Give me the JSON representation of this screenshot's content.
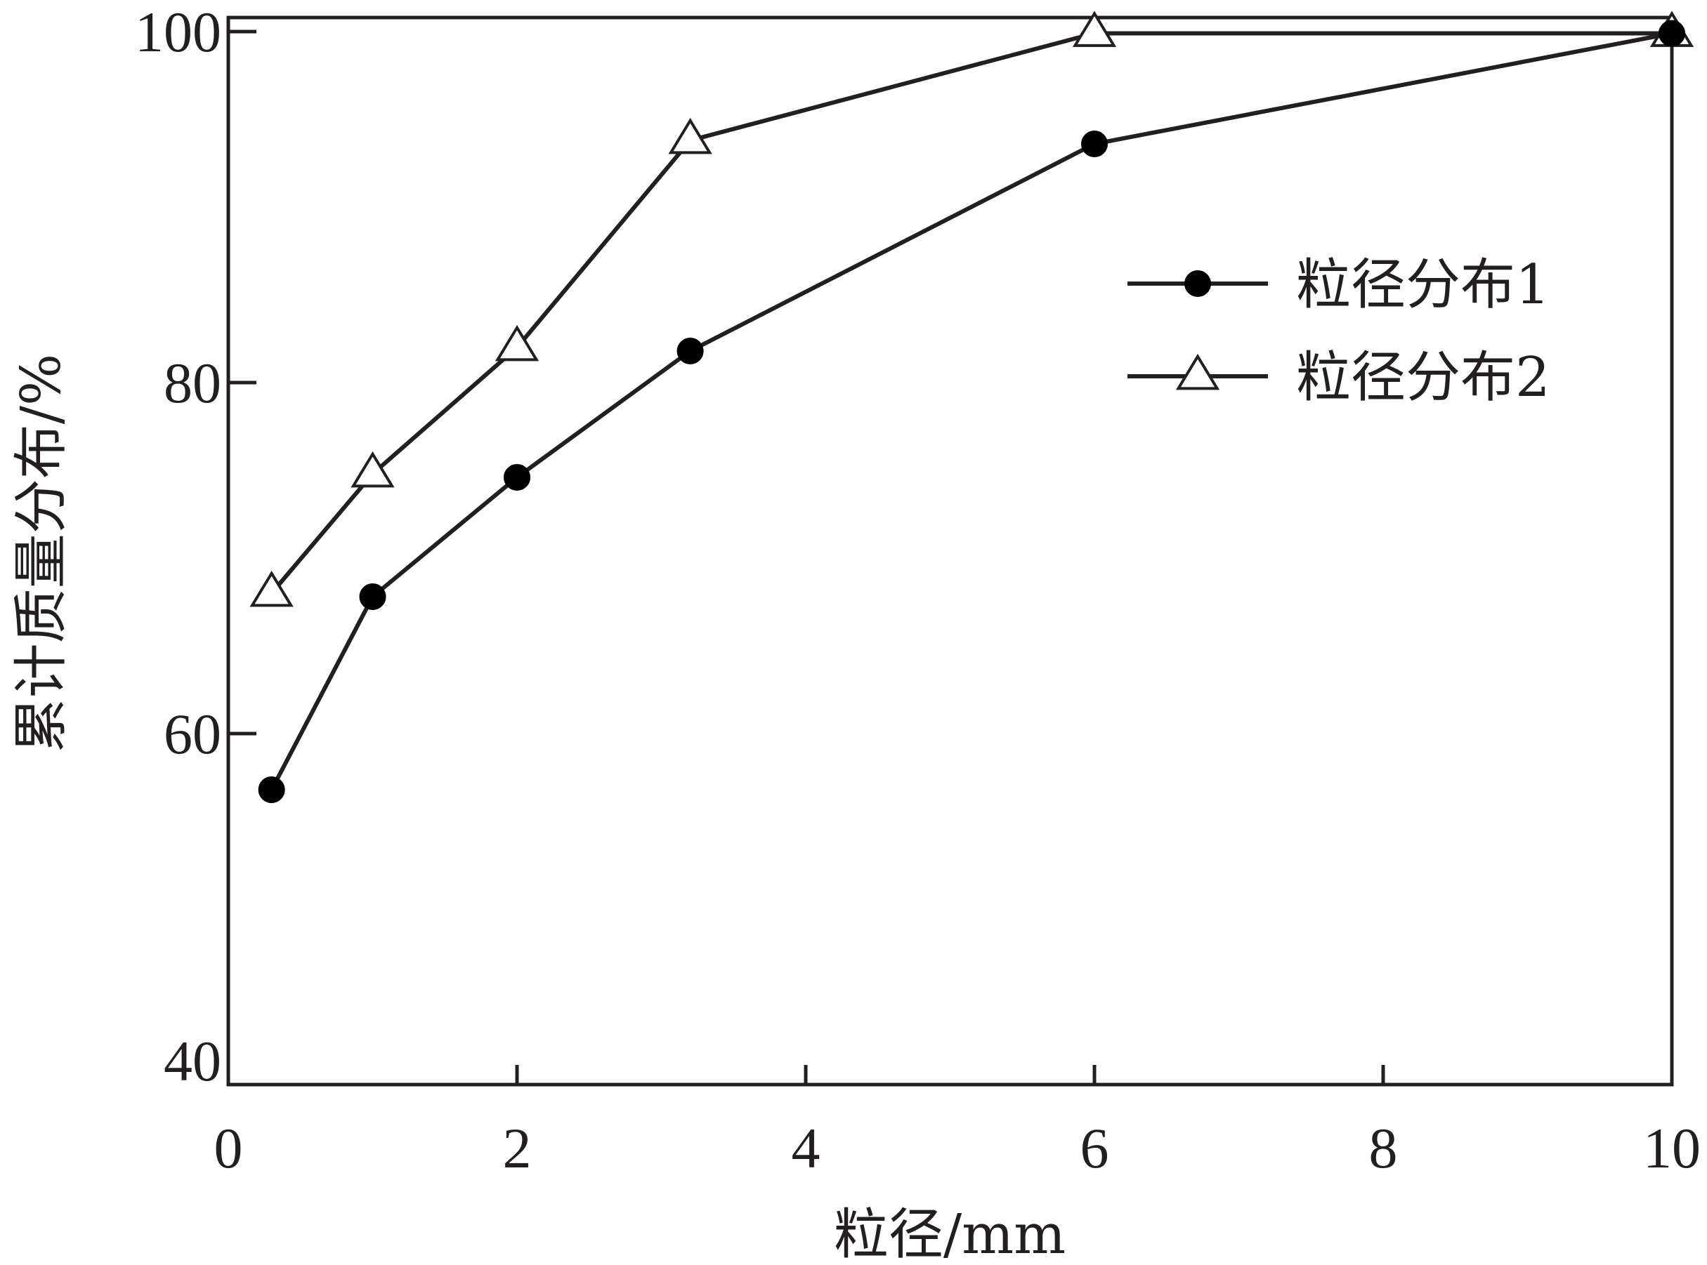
{
  "chart_data": {
    "type": "line",
    "title": "",
    "xlabel": "粒径/mm",
    "ylabel": "累计质量分布/%",
    "xlim": [
      0,
      10
    ],
    "ylim": [
      40,
      100
    ],
    "xticks": [
      "0",
      "2",
      "4",
      "6",
      "8",
      "10"
    ],
    "yticks": [
      "40",
      "60",
      "80",
      "100"
    ],
    "grid": false,
    "legend_position": "right",
    "series": [
      {
        "name": "粒径分布1",
        "marker": "filled-circle",
        "color": "#000000",
        "points": [
          {
            "x": 0.3,
            "y": 56.8
          },
          {
            "x": 1.0,
            "y": 67.8
          },
          {
            "x": 2.0,
            "y": 74.6
          },
          {
            "x": 3.2,
            "y": 81.8
          },
          {
            "x": 6.0,
            "y": 93.6
          },
          {
            "x": 10.0,
            "y": 99.9
          }
        ]
      },
      {
        "name": "粒径分布2",
        "marker": "open-triangle",
        "color": "#231f20",
        "points": [
          {
            "x": 0.3,
            "y": 68.0
          },
          {
            "x": 1.0,
            "y": 74.8
          },
          {
            "x": 2.0,
            "y": 82.0
          },
          {
            "x": 3.2,
            "y": 93.8
          },
          {
            "x": 6.0,
            "y": 99.9
          },
          {
            "x": 10.0,
            "y": 99.9
          }
        ]
      }
    ]
  }
}
